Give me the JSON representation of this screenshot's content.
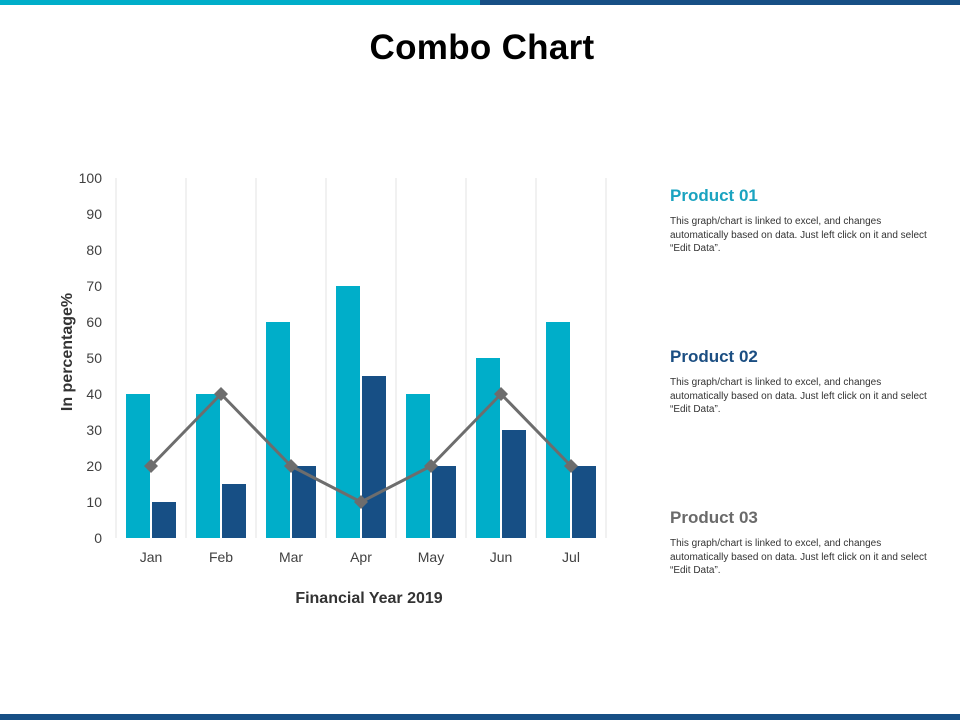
{
  "title": "Combo Chart",
  "colors": {
    "accent_cyan": "#00aec9",
    "accent_navy": "#174f85",
    "line_gray": "#6d6d6d",
    "product_01": "#1aa3c0",
    "product_02": "#1b4e82",
    "product_03": "#6a6a6a"
  },
  "chart_data": {
    "type": "bar",
    "title": "",
    "xlabel": "Financial Year 2019",
    "ylabel": "In percentage%",
    "ylim": [
      0,
      100
    ],
    "yticks": [
      0,
      10,
      20,
      30,
      40,
      50,
      60,
      70,
      80,
      90,
      100
    ],
    "grid": "vertical",
    "categories": [
      "Jan",
      "Feb",
      "Mar",
      "Apr",
      "May",
      "Jun",
      "Jul"
    ],
    "series": [
      {
        "name": "Product 01",
        "kind": "bar",
        "values": [
          40,
          40,
          60,
          70,
          40,
          50,
          60
        ]
      },
      {
        "name": "Product 02",
        "kind": "bar",
        "values": [
          10,
          15,
          20,
          45,
          20,
          30,
          20
        ]
      },
      {
        "name": "Product 03",
        "kind": "line",
        "marker": "diamond",
        "values": [
          20,
          40,
          20,
          10,
          20,
          40,
          20
        ]
      }
    ]
  },
  "products": [
    {
      "title": "Product 01",
      "desc": "This graph/chart is linked to excel, and changes automatically based on data. Just left click on it and select “Edit Data”."
    },
    {
      "title": "Product 02",
      "desc": "This graph/chart is linked to excel, and changes automatically based on data. Just left click on it and select “Edit Data”."
    },
    {
      "title": "Product 03",
      "desc": "This graph/chart is linked to excel, and changes automatically based on data. Just left click on it and select “Edit Data”."
    }
  ]
}
